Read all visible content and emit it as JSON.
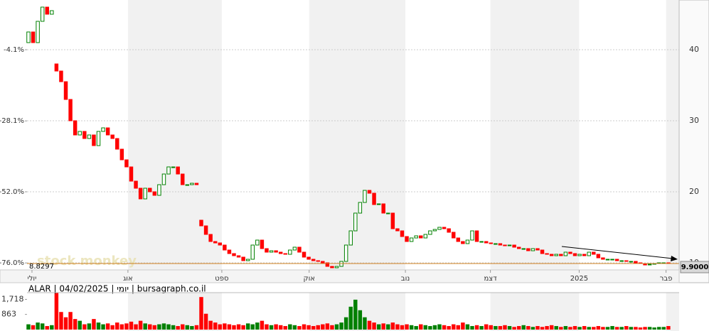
{
  "chart_data": {
    "type": "candlestick",
    "info_line": "ALAR | 04/02/2025 | יומי | bursagraph.co.il",
    "watermark": "stock monkey",
    "xlim": [
      -0.3,
      139.3
    ],
    "xticks": [
      {
        "value": 0.76,
        "label": "יולי"
      },
      {
        "value": 21.3,
        "label": "אוג"
      },
      {
        "value": 41.4,
        "label": "ספט"
      },
      {
        "value": 60.1,
        "label": "אוק"
      },
      {
        "value": 80.7,
        "label": "נוב"
      },
      {
        "value": 98.9,
        "label": "דצמ"
      },
      {
        "value": 117.9,
        "label": "2025"
      },
      {
        "value": 136.5,
        "label": "פבר"
      }
    ],
    "ylim": [
      9,
      47
    ],
    "yticks": [
      10,
      20,
      30,
      40
    ],
    "y2lim": [
      -78.35,
      12.67
    ],
    "y2ticks": [
      {
        "value": -4.1,
        "label": "-4.1%"
      },
      {
        "value": -28.1,
        "label": "-28.1%"
      },
      {
        "value": -52.0,
        "label": "-52.0%"
      },
      {
        "value": -76.0,
        "label": "-76.0%"
      }
    ],
    "grid": true,
    "up_color": "#008000",
    "down_color": "#ff0000",
    "open": [
      41,
      42.5,
      41,
      44,
      46,
      45,
      38,
      37,
      35.5,
      33,
      30,
      28,
      28.5,
      27.5,
      28,
      26.5,
      28.5,
      29,
      28,
      27.5,
      26,
      24.5,
      23.5,
      21.5,
      20.5,
      19,
      20.5,
      20,
      19.5,
      21,
      22.5,
      23.5,
      23.5,
      22.5,
      21,
      21,
      21.2,
      16,
      15.2,
      14,
      13,
      12.8,
      12.5,
      11.8,
      11.3,
      11,
      10.8,
      10.3,
      10.5,
      12.5,
      13.2,
      12,
      11.5,
      11.7,
      11.5,
      11.3,
      11.2,
      11.8,
      12.2,
      11.5,
      10.8,
      10.5,
      10.3,
      10.2,
      10,
      9.5,
      9.3,
      9.5,
      10.2,
      12.5,
      14.5,
      17,
      18.5,
      20.2,
      19.8,
      18.2,
      18.3,
      17,
      17,
      14.8,
      14.5,
      13.7,
      13,
      13.5,
      13.8,
      13.5,
      14,
      14.5,
      14.7,
      15,
      14.8,
      14.3,
      13.5,
      13,
      12.7,
      13.2,
      14.5,
      13,
      13,
      12.8,
      12.7,
      12.7,
      12.5,
      12.4,
      12.5,
      12.2,
      12,
      12,
      11.7,
      12,
      11.8,
      11.3,
      11.2,
      11,
      11.2,
      11,
      11.5,
      11.3,
      11,
      11.2,
      11,
      11.5,
      11.2,
      10.7,
      10.5,
      10.5,
      10.5,
      10.3,
      10.3,
      10.2,
      10.2,
      10,
      9.9,
      9.7,
      9.8,
      9.9,
      10,
      10
    ],
    "close": [
      42.5,
      41,
      44,
      46,
      45,
      45.5,
      37,
      35.5,
      33,
      30,
      28,
      28.5,
      27.5,
      28,
      26.5,
      28.5,
      29,
      28,
      27.5,
      26,
      24.5,
      23.5,
      21.5,
      20.5,
      19,
      20.5,
      20,
      19.5,
      21,
      22.5,
      23.5,
      23.5,
      22.5,
      21,
      21,
      21.2,
      21,
      15.2,
      14,
      13,
      12.8,
      12.5,
      11.8,
      11.3,
      11,
      10.8,
      10.3,
      10.5,
      12.5,
      13.2,
      12,
      11.5,
      11.7,
      11.5,
      11.3,
      11.2,
      11.8,
      12.2,
      11.5,
      10.8,
      10.5,
      10.3,
      10.2,
      10,
      9.5,
      9.3,
      9.5,
      10.2,
      12.5,
      14.5,
      17,
      18.5,
      20.2,
      19.8,
      18.2,
      18.3,
      17,
      17,
      14.8,
      14.5,
      13.7,
      13,
      13.5,
      13.8,
      13.5,
      14,
      14.5,
      14.7,
      15,
      14.8,
      14.3,
      13.5,
      13,
      12.7,
      13.2,
      14.5,
      13,
      13,
      12.8,
      12.7,
      12.7,
      12.5,
      12.4,
      12.5,
      12.2,
      12,
      12,
      11.7,
      12,
      11.8,
      11.3,
      11.2,
      11,
      11.2,
      11,
      11.5,
      11.3,
      11,
      11.2,
      11,
      11.5,
      11.2,
      10.7,
      10.5,
      10.5,
      10.5,
      10.3,
      10.3,
      10.2,
      10.2,
      10,
      9.9,
      9.7,
      9.8,
      9.9,
      10,
      10,
      9.9
    ],
    "volume": {
      "values": [
        300,
        250,
        400,
        350,
        200,
        250,
        2100,
        1000,
        700,
        1000,
        600,
        500,
        300,
        350,
        600,
        400,
        300,
        350,
        250,
        400,
        300,
        350,
        450,
        300,
        500,
        350,
        300,
        250,
        300,
        350,
        300,
        250,
        200,
        300,
        250,
        200,
        250,
        1850,
        900,
        500,
        400,
        300,
        350,
        300,
        250,
        300,
        250,
        350,
        300,
        400,
        500,
        300,
        250,
        300,
        250,
        200,
        300,
        250,
        200,
        300,
        250,
        200,
        250,
        300,
        350,
        250,
        300,
        400,
        700,
        1300,
        1700,
        1100,
        700,
        500,
        400,
        300,
        350,
        300,
        400,
        300,
        250,
        300,
        250,
        200,
        300,
        250,
        200,
        250,
        300,
        250,
        200,
        300,
        250,
        400,
        300,
        200,
        250,
        200,
        300,
        250,
        200,
        200,
        250,
        200,
        150,
        200,
        250,
        200,
        150,
        200,
        150,
        200,
        250,
        200,
        150,
        200,
        150,
        200,
        150,
        200,
        150,
        150,
        200,
        150,
        150,
        200,
        150,
        150,
        200,
        150,
        150,
        120,
        150,
        150,
        120,
        150,
        150,
        200
      ],
      "ylim": [
        0,
        2100
      ],
      "yticks": [
        {
          "value": 1718,
          "label": "1,718"
        },
        863
      ]
    },
    "last_price": {
      "value": 9.9,
      "label": "9.9000"
    },
    "min_price": 8.8297
  }
}
